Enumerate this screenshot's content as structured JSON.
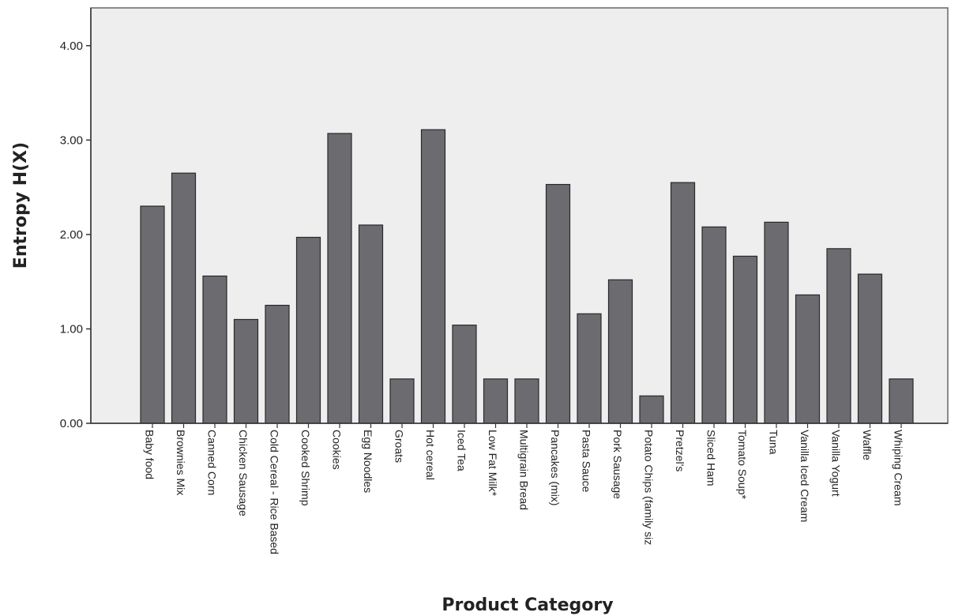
{
  "chart_data": {
    "type": "bar",
    "title": "",
    "xlabel": "Product Category",
    "ylabel": "Entropy H(X)",
    "ylim": [
      0,
      4.4
    ],
    "yticks": [
      {
        "value": 0,
        "label": "0.00"
      },
      {
        "value": 1,
        "label": "1.00"
      },
      {
        "value": 2,
        "label": "2.00"
      },
      {
        "value": 3,
        "label": "3.00"
      },
      {
        "value": 4,
        "label": "4.00"
      }
    ],
    "categories": [
      "Baby food",
      "Brownies Mix",
      "Canned Corn",
      "Chicken Sausage",
      "Cold Cereal - Rice Based",
      "Cooked Shrimp",
      "Cookies",
      "Egg Noodles",
      "Groats",
      "Hot cereal",
      "Iced Tea",
      "Low Fat Milk*",
      "Multigrain Bread",
      "Pancakes (mix)",
      "Pasta Sauce",
      "Pork Sausage",
      "Potato Chips (family siz",
      "Pretzel's",
      "Sliced Ham",
      "Tomato Soup*",
      "Tuna",
      "Vanilla Iced Cream",
      "Vanilla Yogurt",
      "Waffle",
      "Whiping Cream"
    ],
    "values": [
      2.3,
      2.65,
      1.56,
      1.1,
      1.25,
      1.97,
      3.07,
      2.1,
      0.47,
      3.11,
      1.04,
      0.47,
      0.47,
      2.53,
      1.16,
      1.52,
      0.29,
      2.55,
      2.08,
      1.77,
      2.13,
      1.36,
      1.85,
      1.58,
      0.47
    ],
    "bar_color": "#6b6b70",
    "plot_background": "#eeeeee",
    "grid": false,
    "legend": "none"
  }
}
